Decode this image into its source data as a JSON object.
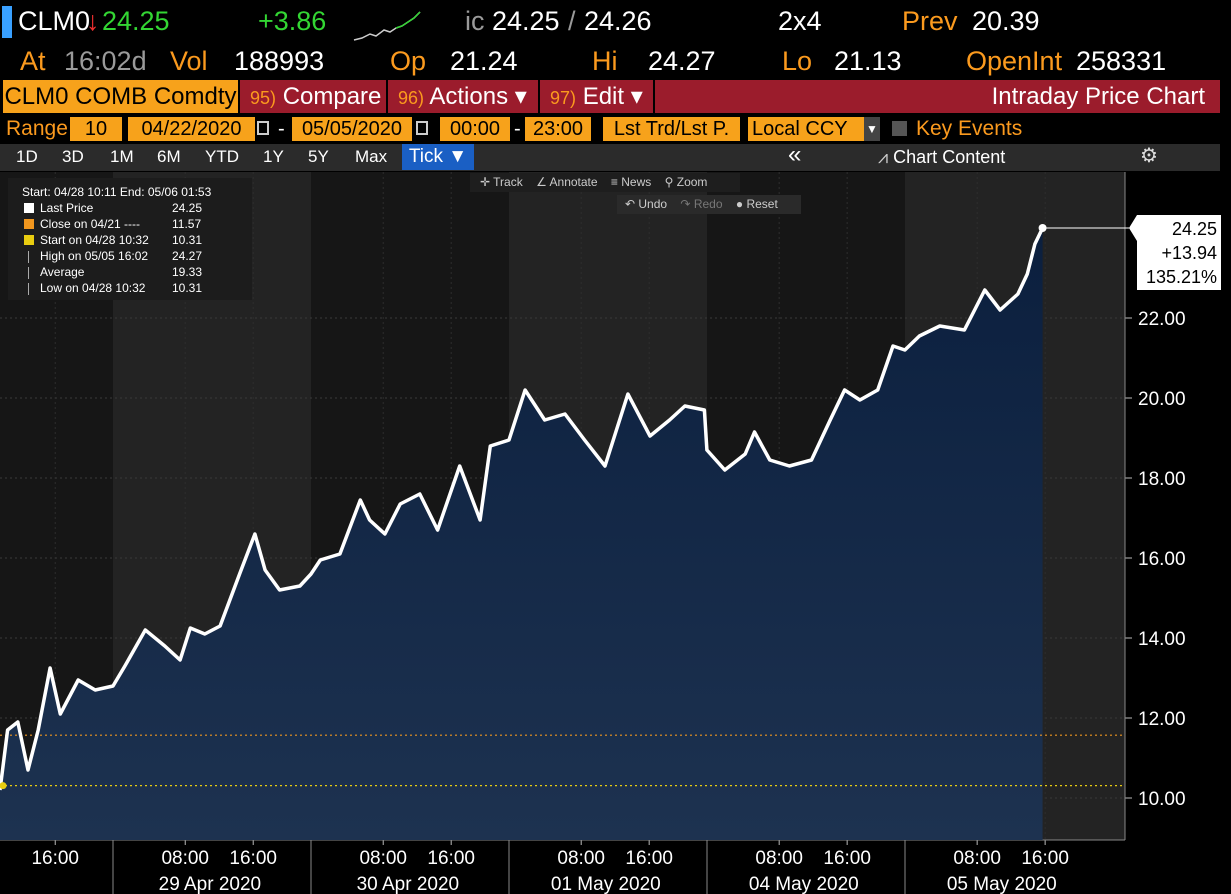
{
  "header": {
    "ticker": "CLM0",
    "arrow": "↓",
    "last": "24.25",
    "change": "+3.86",
    "quote_prefix": "ic",
    "bid": "24.25",
    "quote_sep": "/",
    "ask": "24.26",
    "size": "2x4",
    "prev_label": "Prev",
    "prev": "20.39",
    "stats": [
      {
        "label": "At",
        "value": "16:02d"
      },
      {
        "label": "Vol",
        "value": "188993"
      },
      {
        "label": "Op",
        "value": "21.24"
      },
      {
        "label": "Hi",
        "value": "24.27"
      },
      {
        "label": "Lo",
        "value": "21.13"
      },
      {
        "label": "OpenInt",
        "value": "258331"
      }
    ]
  },
  "menu": {
    "security": "CLM0 COMB Comdty",
    "items": [
      {
        "num": "95)",
        "label": "Compare"
      },
      {
        "num": "96)",
        "label": "Actions ▾"
      },
      {
        "num": "97)",
        "label": "Edit ▾"
      }
    ],
    "title": "Intraday Price Chart"
  },
  "range": {
    "label": "Range",
    "count": "10",
    "start_date": "04/22/2020",
    "dash": "-",
    "end_date": "05/05/2020",
    "start_time": "00:00",
    "end_time": "23:00",
    "source": "Lst Trd/Lst P.",
    "currency": "Local CCY",
    "key_events": "Key Events"
  },
  "periods": [
    "1D",
    "3D",
    "1M",
    "6M",
    "YTD",
    "1Y",
    "5Y",
    "Max"
  ],
  "active_period": "Tick ▼",
  "collapse": "«",
  "chart_content": "Chart Content",
  "tools": [
    "Track",
    "Annotate",
    "News",
    "Zoom"
  ],
  "actions": [
    "Undo",
    "Redo",
    "Reset"
  ],
  "chart_data": {
    "type": "line",
    "legend": {
      "header": "Start: 04/28 10:11 End: 05/06 01:53",
      "entries": [
        {
          "name": "Last Price",
          "value": 24.25,
          "color": "#ffffff"
        },
        {
          "name": "Close on 04/21 ----",
          "value": 11.57,
          "color": "#f0961e"
        },
        {
          "name": "Start on 04/28 10:32",
          "value": 10.31,
          "color": "#e8cc10"
        },
        {
          "name": "High on 05/05 16:02",
          "value": 24.27
        },
        {
          "name": "Average",
          "value": 19.33
        },
        {
          "name": "Low on 04/28 10:32",
          "value": 10.31
        }
      ]
    },
    "x": [
      -13.3,
      -12.4,
      -11.2,
      -10.0,
      -8.8,
      -7.4,
      -6.2,
      -4.1,
      -2.1,
      0,
      1.4,
      3.8,
      6.1,
      7.9,
      9.1,
      10.8,
      12.6,
      14.9,
      16.7,
      17.9,
      19.6,
      22.0,
      23.3,
      24.4,
      26.7,
      29.1,
      30.2,
      32.0,
      33.8,
      36.1,
      38.2,
      40.8,
      43.2,
      44.4,
      46.6,
      48.5,
      50.8,
      53.2,
      55.5,
      57.9,
      60.6,
      63.2,
      65.5,
      67.3,
      69.6,
      69.9,
      72.0,
      74.4,
      75.5,
      77.3,
      79.6,
      82.2,
      84.4,
      86.1,
      87.9,
      90.0,
      91.8,
      93.2,
      94.9,
      97.3,
      100.2,
      102.6,
      104.4,
      106.5,
      107.6,
      108.5,
      109.4
    ],
    "series": [
      {
        "name": "Last Price",
        "color": "#ffffff",
        "values": [
          10.2,
          11.7,
          11.9,
          10.7,
          11.7,
          13.25,
          12.1,
          12.95,
          12.7,
          12.8,
          13.3,
          14.2,
          13.8,
          13.45,
          14.25,
          14.1,
          14.3,
          15.6,
          16.6,
          15.7,
          15.2,
          15.3,
          15.6,
          15.95,
          16.1,
          17.45,
          16.95,
          16.6,
          17.35,
          17.6,
          16.7,
          18.3,
          16.95,
          18.8,
          18.95,
          20.2,
          19.45,
          19.6,
          18.95,
          18.3,
          20.1,
          19.05,
          19.45,
          19.8,
          19.7,
          18.7,
          18.2,
          18.6,
          19.15,
          18.45,
          18.3,
          18.45,
          19.45,
          20.2,
          19.95,
          20.2,
          21.3,
          21.2,
          21.55,
          21.8,
          21.7,
          22.7,
          22.2,
          22.6,
          23.1,
          23.85,
          24.25
        ]
      }
    ],
    "xlim": [
      -13.3,
      119.1
    ],
    "xticks": [
      {
        "value": -6.8,
        "label": "16:00"
      },
      {
        "value": 8.5,
        "label": "08:00"
      },
      {
        "value": 16.5,
        "label": "16:00"
      },
      {
        "value": 31.8,
        "label": "08:00"
      },
      {
        "value": 39.8,
        "label": "16:00"
      },
      {
        "value": 55.1,
        "label": "08:00"
      },
      {
        "value": 63.1,
        "label": "16:00"
      },
      {
        "value": 78.4,
        "label": "08:00"
      },
      {
        "value": 86.4,
        "label": "16:00"
      },
      {
        "value": 101.7,
        "label": "08:00"
      },
      {
        "value": 109.7,
        "label": "16:00"
      }
    ],
    "date_ticks": [
      {
        "value": 11.4,
        "label": "29 Apr 2020"
      },
      {
        "value": 34.7,
        "label": "30 Apr 2020"
      },
      {
        "value": 58.0,
        "label": "01 May 2020"
      },
      {
        "value": 81.3,
        "label": "04 May 2020"
      },
      {
        "value": 104.6,
        "label": "05 May 2020"
      }
    ],
    "ylim": [
      8.95,
      25.65
    ],
    "yticks": [
      {
        "value": 10,
        "label": "10.00"
      },
      {
        "value": 12,
        "label": "12.00"
      },
      {
        "value": 14,
        "label": "14.00"
      },
      {
        "value": 16,
        "label": "16.00"
      },
      {
        "value": 18,
        "label": "18.00"
      },
      {
        "value": 20,
        "label": "20.00"
      },
      {
        "value": 22,
        "label": "22.00"
      }
    ],
    "grid": true,
    "last_label": [
      "24.25",
      "+13.94",
      "135.21%"
    ]
  }
}
